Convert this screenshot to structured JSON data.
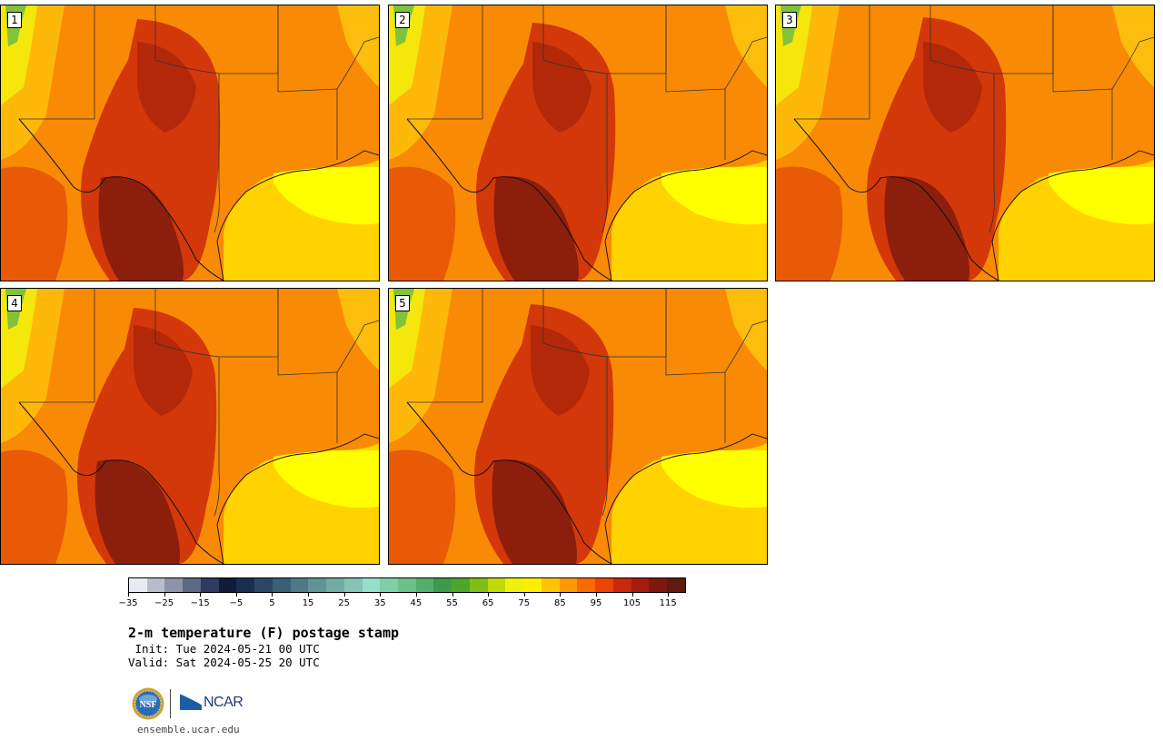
{
  "panels": [
    {
      "number": "1"
    },
    {
      "number": "2"
    },
    {
      "number": "3"
    },
    {
      "number": "4"
    },
    {
      "number": "5"
    }
  ],
  "colorbar": {
    "colors": [
      "#e8ebf1",
      "#b8bccb",
      "#8e94a8",
      "#5d6885",
      "#2d3b61",
      "#0f1c3a",
      "#1b2e50",
      "#2b4763",
      "#3b5f75",
      "#4e7a86",
      "#609395",
      "#73aba5",
      "#86c3b5",
      "#95dfcb",
      "#7fd0a8",
      "#6cc08b",
      "#55ad6d",
      "#3e9a4a",
      "#4ba62e",
      "#80bd16",
      "#c1d80a",
      "#edf10d",
      "#ffee00",
      "#ffc400",
      "#fb9a04",
      "#f86a03",
      "#ea4406",
      "#c7290a",
      "#a41c0b",
      "#7f1910",
      "#5e1a0e"
    ],
    "ticks": [
      "−35",
      "−25",
      "−15",
      "−5",
      "5",
      "15",
      "25",
      "35",
      "45",
      "55",
      "65",
      "75",
      "85",
      "95",
      "105",
      "115"
    ]
  },
  "title": "2-m temperature (F) postage stamp",
  "init": " Init: Tue 2024-05-21 00 UTC",
  "valid": "Valid: Sat 2024-05-25 20 UTC",
  "logos": {
    "nsf": "NSF",
    "ncar": "NCAR"
  },
  "site": "ensemble.ucar.edu"
}
